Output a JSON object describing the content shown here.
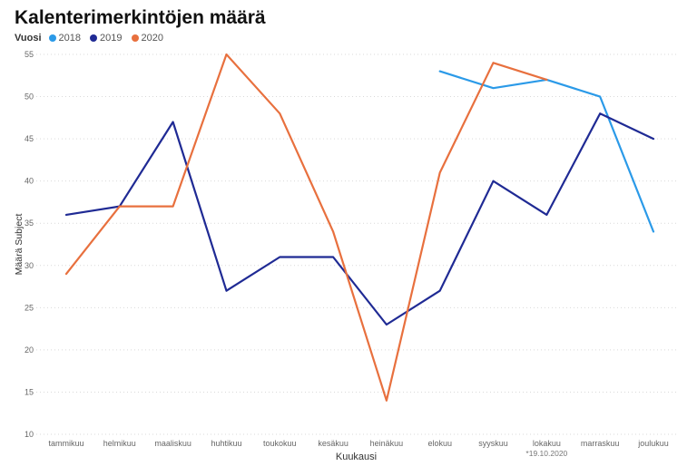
{
  "chart_data": {
    "type": "line",
    "title": "Kalenterimerkintöjen määrä",
    "xlabel": "Kuukausi",
    "ylabel": "Määrä Subject",
    "legend_title": "Vuosi",
    "legend_position": "top-left",
    "grid": true,
    "ylim": [
      10,
      55
    ],
    "yticks": [
      10,
      15,
      20,
      25,
      30,
      35,
      40,
      45,
      50,
      55
    ],
    "categories": [
      "tammikuu",
      "helmikuu",
      "maaliskuu",
      "huhtikuu",
      "toukokuu",
      "kesäkuu",
      "heinäkuu",
      "elokuu",
      "syyskuu",
      "lokakuu",
      "marraskuu",
      "joulukuu"
    ],
    "annotation": "*19.10.2020",
    "series": [
      {
        "name": "2018",
        "color": "#2b9ae8",
        "values": [
          null,
          null,
          null,
          null,
          null,
          null,
          null,
          53,
          51,
          52,
          50,
          34
        ]
      },
      {
        "name": "2019",
        "color": "#1f2a94",
        "values": [
          36,
          37,
          47,
          27,
          31,
          31,
          23,
          27,
          40,
          36,
          48,
          45
        ]
      },
      {
        "name": "2020",
        "color": "#e8703e",
        "values": [
          29,
          37,
          37,
          55,
          48,
          34,
          14,
          41,
          54,
          52,
          null,
          null
        ]
      }
    ]
  }
}
